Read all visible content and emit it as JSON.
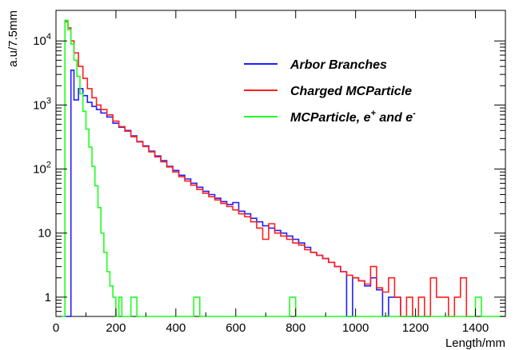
{
  "chart_data": {
    "type": "line",
    "title": "",
    "xlabel": "Length/mm",
    "ylabel": "a.u/7.5mm",
    "xlim": [
      0,
      1500
    ],
    "ylim": [
      0.5,
      30000
    ],
    "yscale": "log",
    "grid": false,
    "legend_position": "top-right",
    "x_ticks": [
      "0",
      "200",
      "400",
      "600",
      "800",
      "1000",
      "1200",
      "1400"
    ],
    "y_ticks": [
      {
        "value": 1,
        "base": "1",
        "exp": ""
      },
      {
        "value": 10,
        "base": "10",
        "exp": ""
      },
      {
        "value": 100,
        "base": "10",
        "exp": "2"
      },
      {
        "value": 1000,
        "base": "10",
        "exp": "3"
      },
      {
        "value": 10000,
        "base": "10",
        "exp": "4"
      }
    ],
    "series": [
      {
        "name": "Arbor Branches",
        "legend_parts": [
          {
            "text": "Arbor Branches",
            "sup": ""
          }
        ],
        "color": "#1f1fff",
        "points": [
          [
            30,
            0.4
          ],
          [
            45,
            0.4
          ],
          [
            50,
            3500
          ],
          [
            60,
            1200
          ],
          [
            75,
            1800
          ],
          [
            90,
            1400
          ],
          [
            105,
            1100
          ],
          [
            120,
            950
          ],
          [
            135,
            850
          ],
          [
            150,
            750
          ],
          [
            170,
            650
          ],
          [
            190,
            520
          ],
          [
            210,
            450
          ],
          [
            230,
            400
          ],
          [
            250,
            330
          ],
          [
            270,
            270
          ],
          [
            290,
            230
          ],
          [
            310,
            190
          ],
          [
            330,
            160
          ],
          [
            350,
            135
          ],
          [
            370,
            110
          ],
          [
            390,
            95
          ],
          [
            410,
            80
          ],
          [
            430,
            70
          ],
          [
            450,
            60
          ],
          [
            470,
            52
          ],
          [
            490,
            45
          ],
          [
            510,
            40
          ],
          [
            530,
            35
          ],
          [
            550,
            31
          ],
          [
            570,
            28
          ],
          [
            590,
            30
          ],
          [
            610,
            22
          ],
          [
            630,
            20
          ],
          [
            650,
            17
          ],
          [
            670,
            15
          ],
          [
            690,
            13
          ],
          [
            710,
            12
          ],
          [
            730,
            11
          ],
          [
            750,
            10
          ],
          [
            770,
            9
          ],
          [
            790,
            8
          ],
          [
            810,
            7
          ],
          [
            830,
            6
          ],
          [
            850,
            5
          ],
          [
            870,
            4.5
          ],
          [
            890,
            4
          ],
          [
            910,
            3.5
          ],
          [
            930,
            3
          ],
          [
            950,
            2.5
          ],
          [
            970,
            0.4
          ],
          [
            990,
            2
          ],
          [
            1010,
            1.8
          ],
          [
            1030,
            1.5
          ],
          [
            1050,
            2
          ],
          [
            1070,
            1.3
          ],
          [
            1090,
            0.4
          ],
          [
            1110,
            1
          ],
          [
            1130,
            1
          ],
          [
            1150,
            0.4
          ],
          [
            1250,
            0.4
          ]
        ]
      },
      {
        "name": "Charged MCParticle",
        "legend_parts": [
          {
            "text": "Charged MCParticle",
            "sup": ""
          }
        ],
        "color": "#ff1f1f",
        "points": [
          [
            30,
            20000
          ],
          [
            40,
            16000
          ],
          [
            50,
            10000
          ],
          [
            60,
            6500
          ],
          [
            75,
            4000
          ],
          [
            90,
            2600
          ],
          [
            105,
            1800
          ],
          [
            120,
            1300
          ],
          [
            135,
            1000
          ],
          [
            150,
            850
          ],
          [
            170,
            700
          ],
          [
            190,
            560
          ],
          [
            210,
            460
          ],
          [
            230,
            390
          ],
          [
            250,
            320
          ],
          [
            270,
            265
          ],
          [
            290,
            225
          ],
          [
            310,
            185
          ],
          [
            330,
            155
          ],
          [
            350,
            130
          ],
          [
            370,
            108
          ],
          [
            390,
            90
          ],
          [
            410,
            76
          ],
          [
            430,
            65
          ],
          [
            450,
            56
          ],
          [
            470,
            48
          ],
          [
            490,
            42
          ],
          [
            510,
            37
          ],
          [
            530,
            33
          ],
          [
            550,
            29
          ],
          [
            570,
            26
          ],
          [
            590,
            23
          ],
          [
            610,
            20
          ],
          [
            630,
            18
          ],
          [
            650,
            15
          ],
          [
            670,
            12
          ],
          [
            690,
            8
          ],
          [
            710,
            14
          ],
          [
            730,
            10
          ],
          [
            750,
            9
          ],
          [
            770,
            8
          ],
          [
            790,
            7
          ],
          [
            810,
            6.5
          ],
          [
            830,
            5.5
          ],
          [
            850,
            5
          ],
          [
            870,
            4.5
          ],
          [
            890,
            4
          ],
          [
            910,
            3.5
          ],
          [
            930,
            3
          ],
          [
            950,
            2.5
          ],
          [
            970,
            2.2
          ],
          [
            990,
            2
          ],
          [
            1010,
            1.8
          ],
          [
            1030,
            1.6
          ],
          [
            1050,
            3
          ],
          [
            1070,
            1.4
          ],
          [
            1090,
            1.2
          ],
          [
            1110,
            2
          ],
          [
            1130,
            1
          ],
          [
            1150,
            0.4
          ],
          [
            1170,
            1
          ],
          [
            1190,
            0.4
          ],
          [
            1210,
            1
          ],
          [
            1230,
            0.4
          ],
          [
            1250,
            2
          ],
          [
            1270,
            1
          ],
          [
            1290,
            1
          ],
          [
            1310,
            0.4
          ],
          [
            1330,
            1
          ],
          [
            1350,
            2
          ],
          [
            1370,
            0.4
          ],
          [
            1400,
            0.4
          ]
        ]
      },
      {
        "name": "MCParticle, e+ and e-",
        "legend_parts": [
          {
            "text": "MCParticle, e",
            "sup": "+"
          },
          {
            "text": " and e",
            "sup": "-"
          }
        ],
        "color": "#1fff1f",
        "points": [
          [
            15,
            0.4
          ],
          [
            25,
            0.4
          ],
          [
            30,
            21000
          ],
          [
            40,
            15000
          ],
          [
            50,
            9000
          ],
          [
            60,
            5000
          ],
          [
            70,
            2800
          ],
          [
            80,
            1500
          ],
          [
            90,
            800
          ],
          [
            100,
            420
          ],
          [
            110,
            220
          ],
          [
            120,
            110
          ],
          [
            130,
            55
          ],
          [
            140,
            25
          ],
          [
            150,
            10
          ],
          [
            160,
            5
          ],
          [
            170,
            2.5
          ],
          [
            180,
            1.5
          ],
          [
            190,
            1
          ],
          [
            200,
            0.4
          ],
          [
            210,
            1
          ],
          [
            220,
            0.4
          ],
          [
            230,
            0.4
          ],
          [
            250,
            1
          ],
          [
            270,
            0.4
          ],
          [
            300,
            0.4
          ],
          [
            440,
            0.4
          ],
          [
            460,
            1
          ],
          [
            480,
            0.4
          ],
          [
            760,
            0.4
          ],
          [
            780,
            1
          ],
          [
            800,
            0.4
          ],
          [
            1380,
            0.4
          ],
          [
            1400,
            1
          ],
          [
            1420,
            0.4
          ],
          [
            1500,
            0.4
          ]
        ]
      }
    ]
  }
}
